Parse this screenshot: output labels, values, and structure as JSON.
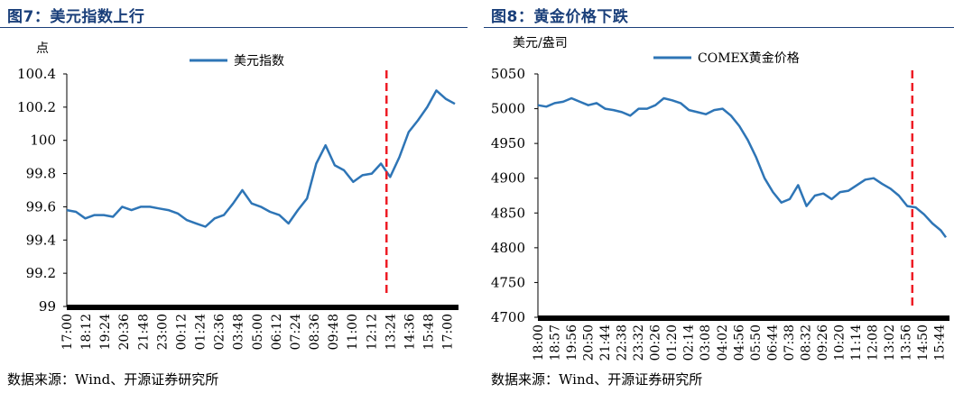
{
  "charts": [
    {
      "figure_title": "图7：美元指数上行",
      "source": "数据来源：Wind、开源证券研究所",
      "unit": "点",
      "chart_data": {
        "type": "line",
        "series": [
          {
            "name": "美元指数",
            "color": "#2e75b6"
          }
        ],
        "ylim": [
          99,
          100.4
        ],
        "yticks": [
          99,
          99.2,
          99.4,
          99.6,
          99.8,
          100,
          100.2,
          100.4
        ],
        "ytick_labels": [
          "99",
          "99.2",
          "99.4",
          "99.6",
          "99.8",
          "100",
          "100.2",
          "100.4"
        ],
        "xtick_labels": [
          "17:00",
          "18:12",
          "19:24",
          "20:36",
          "21:48",
          "23:00",
          "00:12",
          "01:24",
          "02:36",
          "03:48",
          "05:00",
          "06:12",
          "07:24",
          "08:36",
          "09:48",
          "11:00",
          "12:12",
          "13:24",
          "14:36",
          "15:48",
          "17:00"
        ],
        "x": [
          0,
          0.5,
          1,
          1.5,
          2,
          2.5,
          3,
          3.5,
          4,
          4.5,
          5,
          5.5,
          6,
          6.5,
          7,
          7.5,
          8,
          8.5,
          9,
          9.5,
          10,
          10.5,
          11,
          11.5,
          12,
          12.5,
          13,
          13.5,
          14,
          14.5,
          15,
          15.5,
          16,
          16.5,
          17,
          17.5,
          18,
          18.5,
          19,
          19.5,
          20,
          20.5,
          21
        ],
        "values": [
          99.58,
          99.57,
          99.53,
          99.55,
          99.55,
          99.54,
          99.6,
          99.58,
          99.6,
          99.6,
          99.59,
          99.58,
          99.56,
          99.52,
          99.5,
          99.48,
          99.53,
          99.55,
          99.62,
          99.7,
          99.62,
          99.6,
          99.57,
          99.55,
          99.5,
          99.58,
          99.65,
          99.86,
          99.97,
          99.85,
          99.82,
          99.75,
          99.79,
          99.8,
          99.86,
          99.78,
          99.9,
          100.05,
          100.12,
          100.2,
          100.3,
          100.25,
          100.22
        ],
        "event_x": 17.3,
        "event_color": "#ee1c25"
      }
    },
    {
      "figure_title": "图8：黄金价格下跌",
      "source": "数据来源：Wind、开源证券研究所",
      "unit": "美元/盎司",
      "chart_data": {
        "type": "line",
        "series": [
          {
            "name": "COMEX黄金价格",
            "color": "#2e75b6"
          }
        ],
        "ylim": [
          4700,
          5050
        ],
        "yticks": [
          4700,
          4750,
          4800,
          4850,
          4900,
          4950,
          5000,
          5050
        ],
        "ytick_labels": [
          "4700",
          "4750",
          "4800",
          "4850",
          "4900",
          "4950",
          "5000",
          "5050"
        ],
        "xtick_labels": [
          "18:00",
          "18:57",
          "19:56",
          "20:50",
          "21:44",
          "22:38",
          "23:32",
          "00:26",
          "01:20",
          "02:14",
          "03:08",
          "04:02",
          "04:56",
          "05:50",
          "06:44",
          "07:38",
          "08:32",
          "09:26",
          "10:20",
          "11:14",
          "12:08",
          "13:02",
          "13:56",
          "14:50",
          "15:44"
        ],
        "x": [
          0,
          0.5,
          1,
          1.5,
          2,
          2.5,
          3,
          3.5,
          4,
          4.5,
          5,
          5.5,
          6,
          6.5,
          7,
          7.5,
          8,
          8.5,
          9,
          9.5,
          10,
          10.5,
          11,
          11.5,
          12,
          12.5,
          13,
          13.5,
          14,
          14.5,
          15,
          15.5,
          16,
          16.5,
          17,
          17.5,
          18,
          18.5,
          19,
          19.5,
          20,
          20.5,
          21,
          21.5,
          22,
          22.5,
          23,
          23.5,
          24,
          24.3
        ],
        "values": [
          5005,
          5003,
          5008,
          5010,
          5015,
          5010,
          5005,
          5008,
          5000,
          4998,
          4995,
          4990,
          5000,
          5000,
          5005,
          5015,
          5012,
          5008,
          4998,
          4995,
          4992,
          4998,
          5000,
          4990,
          4975,
          4955,
          4930,
          4900,
          4880,
          4865,
          4870,
          4890,
          4860,
          4875,
          4878,
          4870,
          4880,
          4882,
          4890,
          4898,
          4900,
          4892,
          4885,
          4875,
          4860,
          4858,
          4848,
          4835,
          4825,
          4815
        ],
        "event_x": 22.3,
        "event_color": "#ee1c25"
      }
    }
  ]
}
